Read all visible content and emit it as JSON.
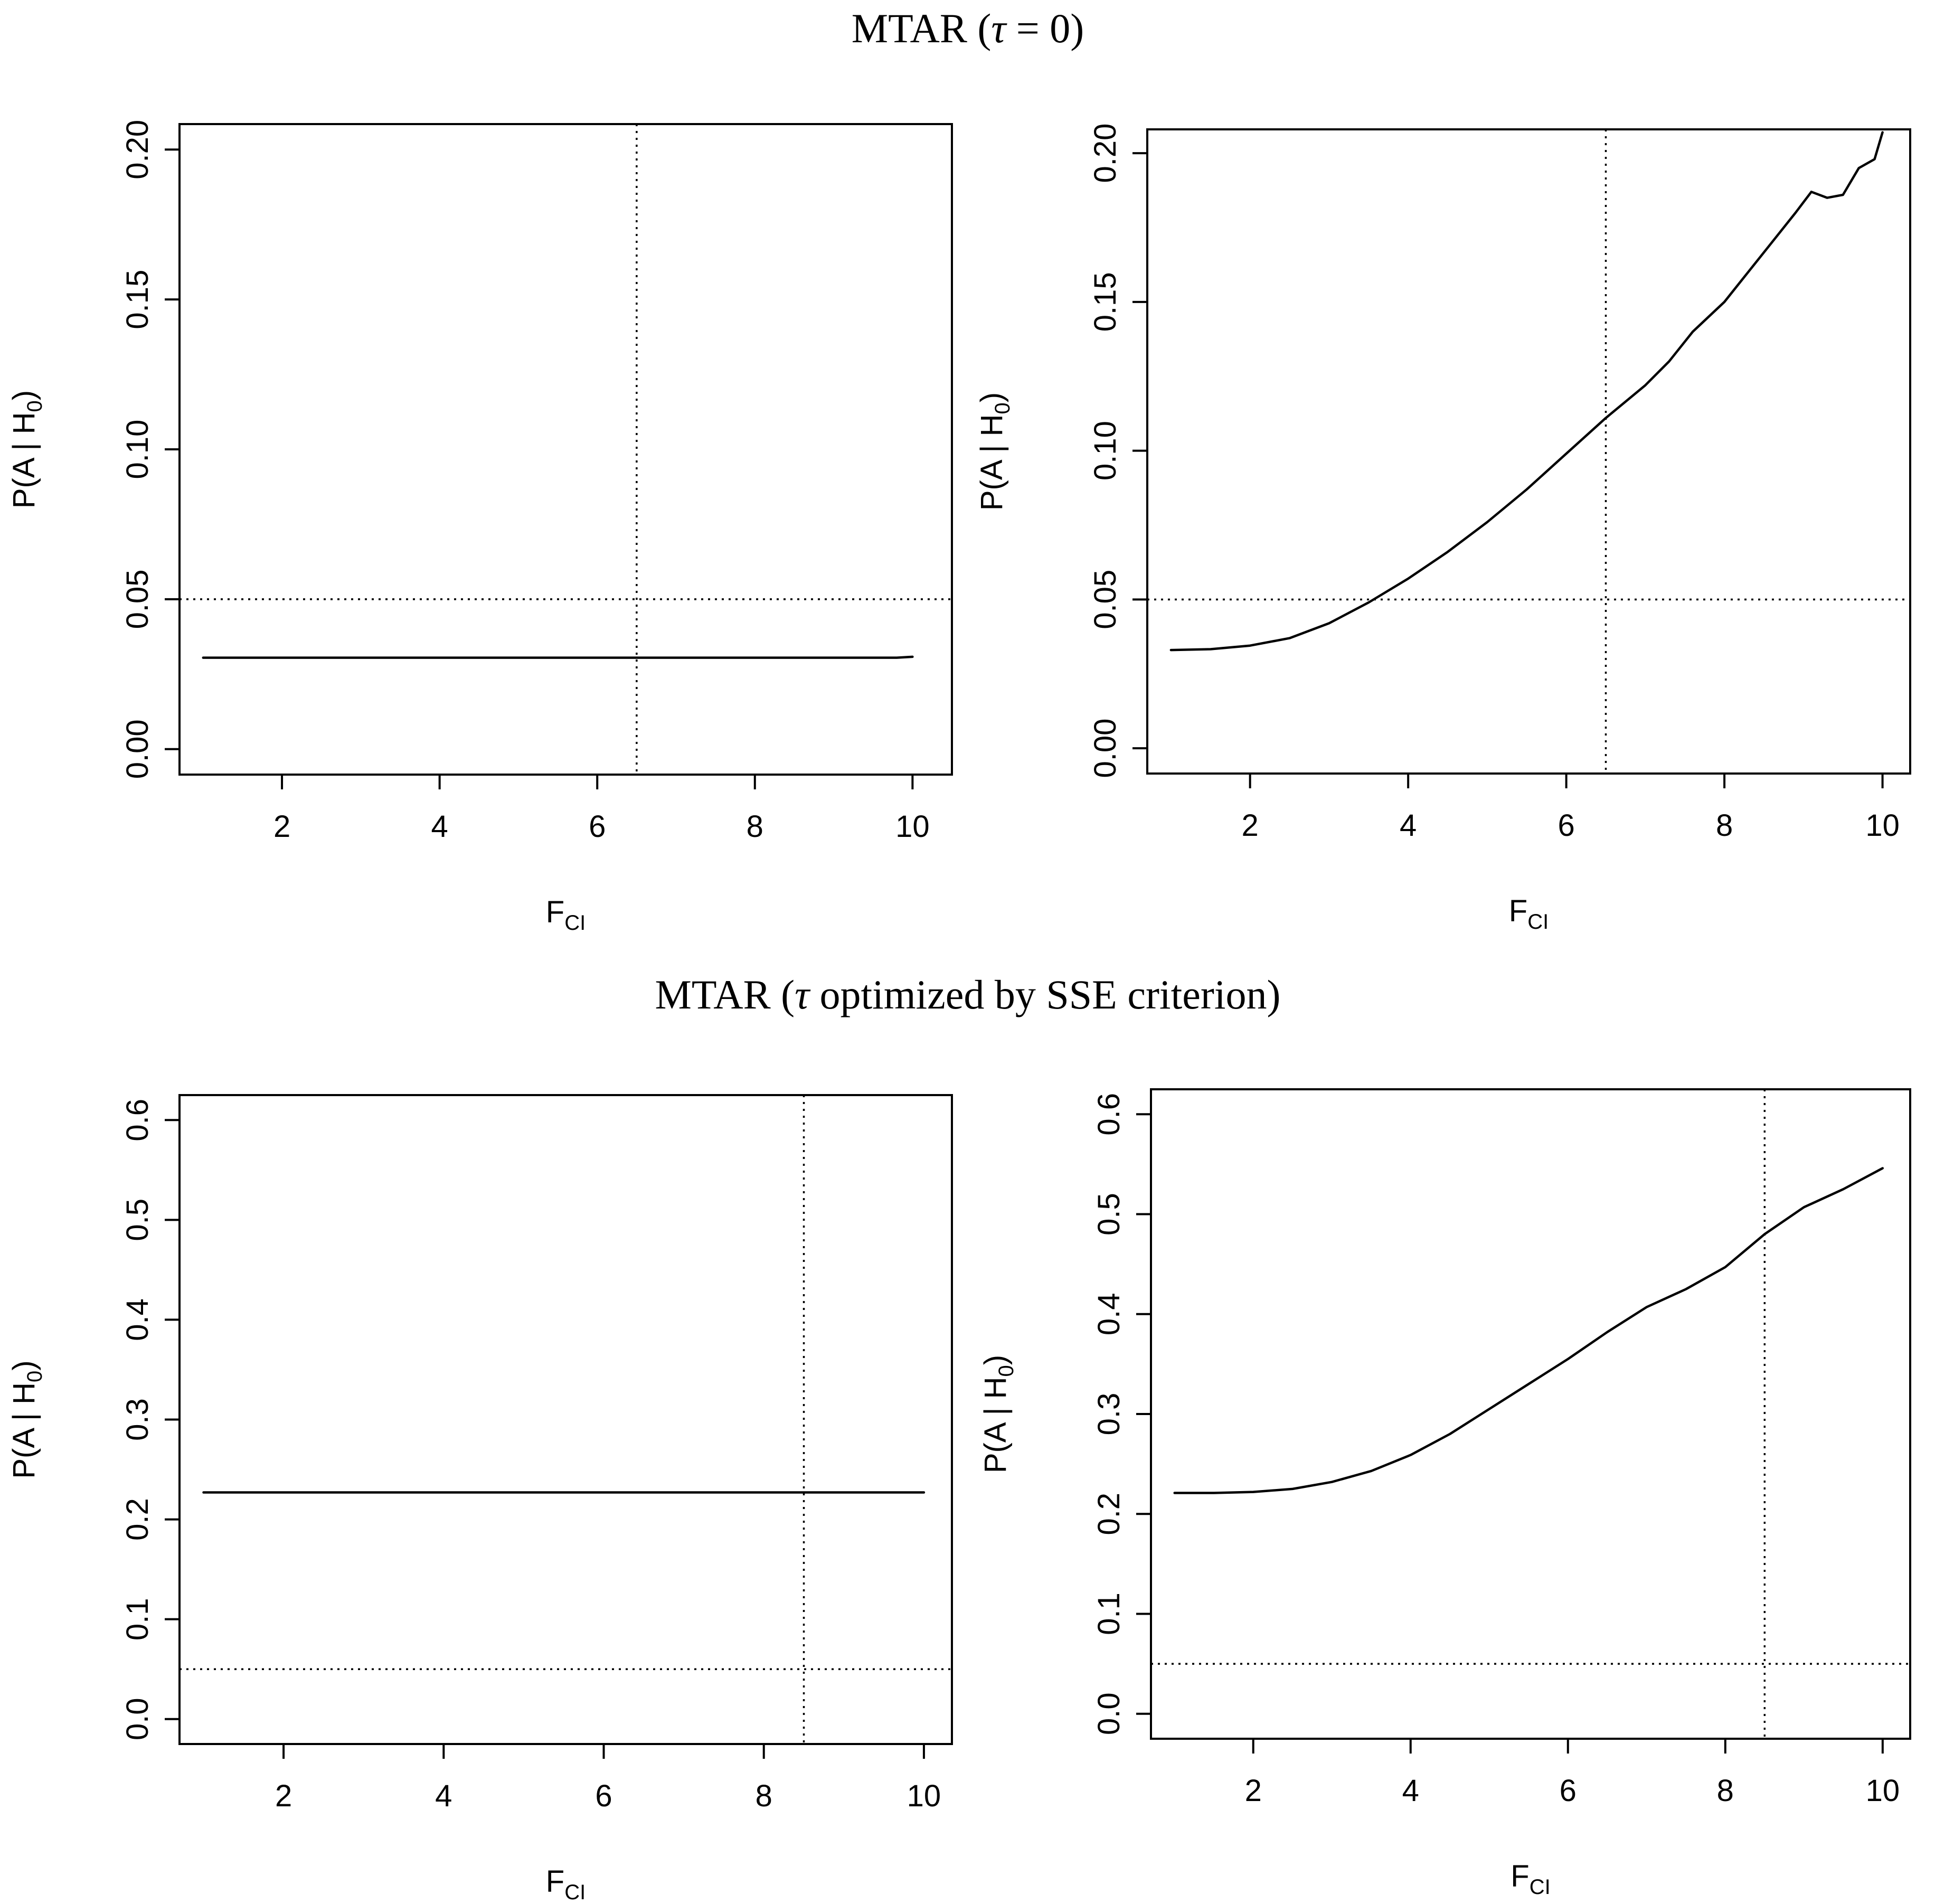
{
  "section_titles": [
    {
      "prefix": "MTAR (",
      "greek": "τ",
      "suffix": " = 0)"
    },
    {
      "prefix": "MTAR (",
      "greek": "τ",
      "suffix": " optimized by SSE criterion)"
    }
  ],
  "chart_data": [
    {
      "type": "line",
      "ylabel": {
        "main": "P(A | H",
        "sub": "0",
        "close": ")"
      },
      "xlabel": {
        "main": "F",
        "sub": "CI"
      },
      "xlim": [
        0.7,
        10.5
      ],
      "ylim": [
        -0.0085,
        0.2085
      ],
      "xticks": [
        2,
        4,
        6,
        8,
        10
      ],
      "yticks": [
        0.0,
        0.05,
        0.1,
        0.15,
        0.2
      ],
      "ytick_labels": [
        "0.00",
        "0.05",
        "0.10",
        "0.15",
        "0.20"
      ],
      "vline": 6.5,
      "hline": 0.05,
      "series": [
        {
          "name": "P(A|H0)",
          "x": [
            1,
            2,
            3,
            4,
            5,
            6,
            7,
            8,
            9,
            9.8,
            10
          ],
          "y": [
            0.0305,
            0.0305,
            0.0305,
            0.0305,
            0.0305,
            0.0305,
            0.0305,
            0.0305,
            0.0305,
            0.0305,
            0.0308
          ]
        }
      ]
    },
    {
      "type": "line",
      "ylabel": {
        "main": "P(A | H",
        "sub": "0",
        "close": ")"
      },
      "xlabel": {
        "main": "F",
        "sub": "CI"
      },
      "xlim": [
        0.7,
        10.35
      ],
      "ylim": [
        -0.0085,
        0.208
      ],
      "xticks": [
        2,
        4,
        6,
        8,
        10
      ],
      "yticks": [
        0.0,
        0.05,
        0.1,
        0.15,
        0.2
      ],
      "ytick_labels": [
        "0.00",
        "0.05",
        "0.10",
        "0.15",
        "0.20"
      ],
      "vline": 6.5,
      "hline": 0.05,
      "series": [
        {
          "name": "P(A|H0)",
          "x": [
            1,
            1.5,
            2,
            2.5,
            3,
            3.5,
            4,
            4.5,
            5,
            5.5,
            6,
            6.5,
            7,
            7.3,
            7.6,
            8,
            8.3,
            8.6,
            8.9,
            9.1,
            9.3,
            9.5,
            9.7,
            9.9,
            10
          ],
          "y": [
            0.033,
            0.0333,
            0.0345,
            0.037,
            0.042,
            0.049,
            0.057,
            0.066,
            0.076,
            0.087,
            0.099,
            0.111,
            0.122,
            0.13,
            0.14,
            0.15,
            0.16,
            0.17,
            0.18,
            0.187,
            0.185,
            0.186,
            0.195,
            0.198,
            0.207
          ]
        }
      ]
    },
    {
      "type": "line",
      "ylabel": {
        "main": "P(A | H",
        "sub": "0",
        "close": ")"
      },
      "xlabel": {
        "main": "F",
        "sub": "CI"
      },
      "xlim": [
        0.7,
        10.35
      ],
      "ylim": [
        -0.025,
        0.625
      ],
      "xticks": [
        2,
        4,
        6,
        8,
        10
      ],
      "yticks": [
        0.0,
        0.1,
        0.2,
        0.3,
        0.4,
        0.5,
        0.6
      ],
      "ytick_labels": [
        "0.0",
        "0.1",
        "0.2",
        "0.3",
        "0.4",
        "0.5",
        "0.6"
      ],
      "vline": 8.5,
      "hline": 0.05,
      "series": [
        {
          "name": "P(A|H0)",
          "x": [
            1,
            2,
            3,
            4,
            5,
            6,
            7,
            8,
            9,
            10
          ],
          "y": [
            0.227,
            0.227,
            0.227,
            0.227,
            0.227,
            0.227,
            0.227,
            0.227,
            0.227,
            0.227
          ]
        }
      ]
    },
    {
      "type": "line",
      "ylabel": {
        "main": "P(A | H",
        "sub": "0",
        "close": ")"
      },
      "xlabel": {
        "main": "F",
        "sub": "CI"
      },
      "xlim": [
        0.7,
        10.35
      ],
      "ylim": [
        -0.025,
        0.625
      ],
      "xticks": [
        2,
        4,
        6,
        8,
        10
      ],
      "yticks": [
        0.0,
        0.1,
        0.2,
        0.3,
        0.4,
        0.5,
        0.6
      ],
      "ytick_labels": [
        "0.0",
        "0.1",
        "0.2",
        "0.3",
        "0.4",
        "0.5",
        "0.6"
      ],
      "vline": 8.5,
      "hline": 0.05,
      "series": [
        {
          "name": "P(A|H0)",
          "x": [
            1,
            1.5,
            2,
            2.5,
            3,
            3.5,
            4,
            4.5,
            5,
            5.5,
            6,
            6.5,
            7,
            7.5,
            8,
            8.5,
            9,
            9.5,
            10
          ],
          "y": [
            0.221,
            0.221,
            0.222,
            0.225,
            0.232,
            0.243,
            0.259,
            0.28,
            0.305,
            0.33,
            0.355,
            0.382,
            0.407,
            0.425,
            0.447,
            0.48,
            0.507,
            0.525,
            0.546
          ]
        }
      ]
    }
  ]
}
